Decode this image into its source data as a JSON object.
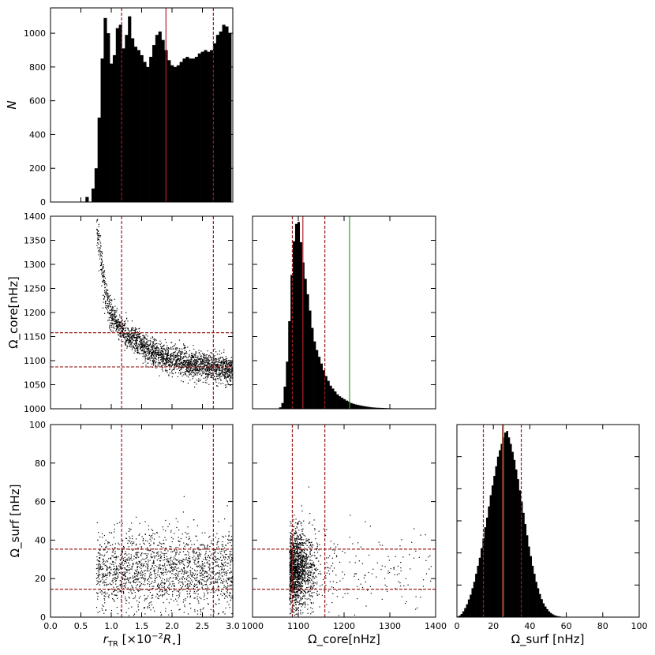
{
  "chart_data": [
    {
      "panel": "rTR-histogram",
      "type": "bar",
      "x_range": [
        0.0,
        3.0
      ],
      "ylim": [
        0,
        1150
      ],
      "ylabel": "N",
      "ytick_labels": [
        "0",
        "200",
        "400",
        "600",
        "800",
        "1000"
      ],
      "bin_centers": [
        0.45,
        0.6,
        0.7,
        0.75,
        0.8,
        0.85,
        0.9,
        0.95,
        1.0,
        1.05,
        1.1,
        1.15,
        1.2,
        1.25,
        1.3,
        1.35,
        1.4,
        1.45,
        1.5,
        1.55,
        1.6,
        1.65,
        1.7,
        1.75,
        1.8,
        1.85,
        1.9,
        1.95,
        2.0,
        2.05,
        2.1,
        2.15,
        2.2,
        2.25,
        2.3,
        2.35,
        2.4,
        2.45,
        2.5,
        2.55,
        2.6,
        2.65,
        2.7,
        2.75,
        2.8,
        2.85,
        2.9,
        2.95
      ],
      "counts": [
        2,
        30,
        80,
        200,
        500,
        850,
        1090,
        1000,
        820,
        870,
        1030,
        1050,
        910,
        990,
        1100,
        970,
        920,
        900,
        870,
        830,
        800,
        860,
        930,
        990,
        1010,
        960,
        900,
        840,
        810,
        800,
        810,
        830,
        850,
        860,
        850,
        850,
        860,
        880,
        890,
        900,
        890,
        900,
        940,
        990,
        1010,
        1050,
        1040,
        1000
      ],
      "median_line": 1.9,
      "percentile_lines": [
        1.17,
        2.68
      ]
    },
    {
      "panel": "rTR-vs-core-scatter",
      "type": "scatter",
      "x_range": [
        0.0,
        3.0
      ],
      "ylim": [
        1000,
        1400
      ],
      "ylabel": "Ω_core[nHz]",
      "ytick_labels": [
        "1000",
        "1050",
        "1100",
        "1150",
        "1200",
        "1250",
        "1300",
        "1350",
        "1400"
      ],
      "trend": {
        "x": [
          0.75,
          0.8,
          0.85,
          0.9,
          0.95,
          1.0,
          1.1,
          1.2,
          1.3,
          1.5,
          1.7,
          2.0,
          2.3,
          2.6,
          3.0
        ],
        "y": [
          1380,
          1350,
          1280,
          1240,
          1210,
          1195,
          1175,
          1160,
          1150,
          1130,
          1115,
          1103,
          1094,
          1088,
          1080
        ]
      },
      "spread": 14,
      "point_count": 2400,
      "vertical_lines": [
        1.17,
        2.68
      ],
      "horizontal_lines": [
        1087,
        1158
      ]
    },
    {
      "panel": "rTR-vs-surf-scatter",
      "type": "scatter",
      "x_range": [
        0.0,
        3.0
      ],
      "xtick_labels": [
        "0.0",
        "0.5",
        "1.0",
        "1.5",
        "2.0",
        "2.5",
        "3.0"
      ],
      "xlabel_main": "r",
      "xlabel_sub": "TR",
      "xlabel_rest": " [×10",
      "xlabel_sup": "−2",
      "xlabel_unit": "R",
      "xlabel_unit_sub": "⋆",
      "xlabel_close": "]",
      "ylim": [
        0,
        100
      ],
      "ylabel": "Ω_surf [nHz]",
      "ytick_labels": [
        "0",
        "20",
        "40",
        "60",
        "80",
        "100"
      ],
      "x_span": [
        0.75,
        3.0
      ],
      "y_mean": 25,
      "y_sd": 10,
      "point_count": 1800,
      "vertical_lines": [
        1.17,
        2.68
      ],
      "horizontal_lines": [
        14.5,
        35.3
      ]
    },
    {
      "panel": "core-histogram",
      "type": "bar",
      "x_range": [
        1000,
        1400
      ],
      "bin_width": 5,
      "bins": [
        [
          1058,
          15
        ],
        [
          1063,
          60
        ],
        [
          1068,
          230
        ],
        [
          1073,
          490
        ],
        [
          1078,
          910
        ],
        [
          1083,
          1390
        ],
        [
          1088,
          1740
        ],
        [
          1093,
          1920
        ],
        [
          1098,
          1940
        ],
        [
          1103,
          1730
        ],
        [
          1108,
          1520
        ],
        [
          1113,
          1350
        ],
        [
          1118,
          1190
        ],
        [
          1123,
          1020
        ],
        [
          1128,
          840
        ],
        [
          1133,
          700
        ],
        [
          1138,
          610
        ],
        [
          1143,
          540
        ],
        [
          1148,
          470
        ],
        [
          1153,
          400
        ],
        [
          1158,
          340
        ],
        [
          1163,
          290
        ],
        [
          1168,
          240
        ],
        [
          1173,
          210
        ],
        [
          1178,
          180
        ],
        [
          1183,
          150
        ],
        [
          1188,
          130
        ],
        [
          1193,
          115
        ],
        [
          1198,
          100
        ],
        [
          1203,
          85
        ],
        [
          1208,
          75
        ],
        [
          1213,
          60
        ],
        [
          1218,
          52
        ],
        [
          1223,
          45
        ],
        [
          1228,
          40
        ],
        [
          1233,
          35
        ],
        [
          1238,
          30
        ],
        [
          1243,
          26
        ],
        [
          1248,
          22
        ],
        [
          1253,
          18
        ],
        [
          1258,
          15
        ],
        [
          1263,
          13
        ],
        [
          1268,
          11
        ],
        [
          1273,
          10
        ],
        [
          1278,
          9
        ],
        [
          1283,
          8
        ],
        [
          1288,
          7
        ],
        [
          1293,
          6
        ],
        [
          1298,
          5
        ],
        [
          1303,
          4
        ],
        [
          1308,
          4
        ],
        [
          1313,
          3
        ],
        [
          1318,
          3
        ],
        [
          1323,
          3
        ],
        [
          1328,
          2
        ],
        [
          1333,
          2
        ],
        [
          1338,
          2
        ],
        [
          1343,
          1
        ]
      ],
      "ylim": [
        0,
        2000
      ],
      "median_line": 1110,
      "percentile_lines": [
        1087,
        1158
      ],
      "reference_line": 1212
    },
    {
      "panel": "core-vs-surf-scatter",
      "type": "scatter",
      "x_range": [
        1000,
        1400
      ],
      "xtick_labels": [
        "1000",
        "1100",
        "1200",
        "1300",
        "1400"
      ],
      "xlabel": "Ω_core[nHz]",
      "ylim": [
        0,
        100
      ],
      "x_dense": [
        1080,
        1125
      ],
      "x_tail": [
        1125,
        1390
      ],
      "y_mean": 25,
      "y_sd": 10,
      "point_count": 1700,
      "vertical_lines": [
        1087,
        1158
      ],
      "horizontal_lines": [
        14.5,
        35.3
      ]
    },
    {
      "panel": "surf-histogram",
      "type": "bar",
      "x_range": [
        0,
        100
      ],
      "xtick_labels": [
        "0",
        "20",
        "40",
        "60",
        "80",
        "100"
      ],
      "xlabel": "Ω_surf [nHz]",
      "bin_width": 1,
      "bins": [
        [
          0,
          2
        ],
        [
          1,
          5
        ],
        [
          2,
          10
        ],
        [
          3,
          18
        ],
        [
          4,
          28
        ],
        [
          5,
          40
        ],
        [
          6,
          55
        ],
        [
          7,
          70
        ],
        [
          8,
          90
        ],
        [
          9,
          110
        ],
        [
          10,
          135
        ],
        [
          11,
          160
        ],
        [
          12,
          185
        ],
        [
          13,
          215
        ],
        [
          14,
          245
        ],
        [
          15,
          280
        ],
        [
          16,
          310
        ],
        [
          17,
          345
        ],
        [
          18,
          380
        ],
        [
          19,
          410
        ],
        [
          20,
          440
        ],
        [
          21,
          470
        ],
        [
          22,
          500
        ],
        [
          23,
          520
        ],
        [
          24,
          540
        ],
        [
          25,
          560
        ],
        [
          26,
          575
        ],
        [
          27,
          580
        ],
        [
          28,
          560
        ],
        [
          29,
          540
        ],
        [
          30,
          515
        ],
        [
          31,
          490
        ],
        [
          32,
          460
        ],
        [
          33,
          430
        ],
        [
          34,
          395
        ],
        [
          35,
          360
        ],
        [
          36,
          325
        ],
        [
          37,
          290
        ],
        [
          38,
          255
        ],
        [
          39,
          220
        ],
        [
          40,
          190
        ],
        [
          41,
          160
        ],
        [
          42,
          135
        ],
        [
          43,
          110
        ],
        [
          44,
          90
        ],
        [
          45,
          72
        ],
        [
          46,
          56
        ],
        [
          47,
          43
        ],
        [
          48,
          33
        ],
        [
          49,
          25
        ],
        [
          50,
          18
        ],
        [
          51,
          13
        ],
        [
          52,
          9
        ],
        [
          53,
          6
        ],
        [
          54,
          4
        ],
        [
          55,
          3
        ],
        [
          56,
          2
        ],
        [
          57,
          1
        ],
        [
          58,
          1
        ]
      ],
      "ylim": [
        0,
        600
      ],
      "median_line": 25,
      "percentile_lines": [
        14.5,
        35.3
      ],
      "reference_line": 25.5
    }
  ],
  "colors": {
    "bars": "#000000",
    "points": "#000000",
    "percentile": "#9b1c1c",
    "median": "#b3202a",
    "reference": "#2ca02c"
  }
}
